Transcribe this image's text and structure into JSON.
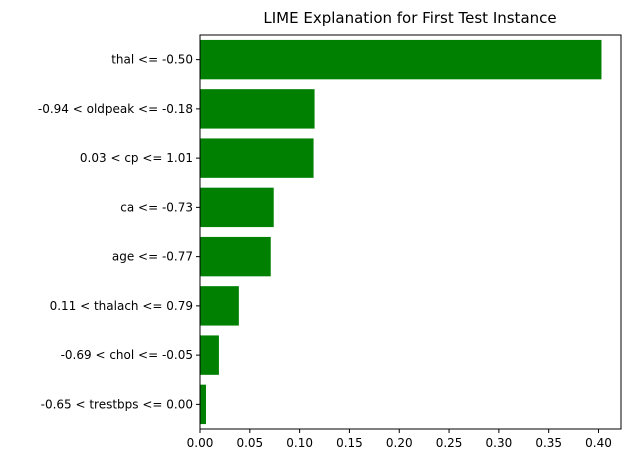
{
  "chart_data": {
    "type": "bar",
    "orientation": "horizontal",
    "title": "LIME Explanation for First Test Instance",
    "xlabel": "",
    "ylabel": "",
    "categories": [
      "thal <= -0.50",
      "-0.94 < oldpeak <= -0.18",
      "0.03 < cp <= 1.01",
      "ca <= -0.73",
      "age <= -0.77",
      "0.11 < thalach <= 0.79",
      "-0.69 < chol <= -0.05",
      "-0.65 < trestbps <= 0.00"
    ],
    "values": [
      0.403,
      0.115,
      0.114,
      0.074,
      0.071,
      0.039,
      0.019,
      0.006
    ],
    "xlim": [
      0,
      0.4226
    ],
    "xticks": [
      "0.00",
      "0.05",
      "0.10",
      "0.15",
      "0.20",
      "0.25",
      "0.30",
      "0.35",
      "0.40"
    ],
    "xtick_values": [
      0,
      0.05,
      0.1,
      0.15,
      0.2,
      0.25,
      0.3,
      0.35,
      0.4
    ],
    "grid": false,
    "legend": "none",
    "bar_color": "#008000"
  }
}
